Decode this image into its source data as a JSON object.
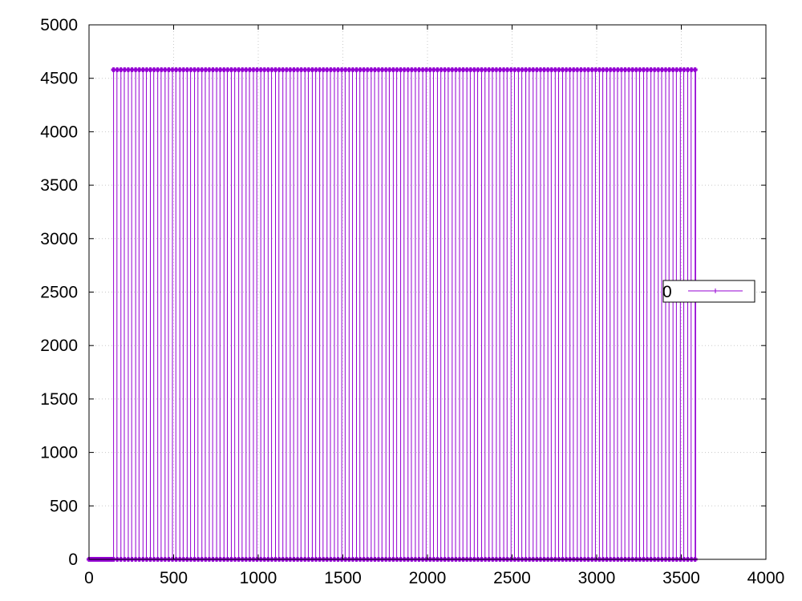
{
  "chart_data": {
    "type": "line",
    "title": "",
    "xlabel": "",
    "ylabel": "",
    "xlim": [
      0,
      4000
    ],
    "ylim": [
      0,
      5000
    ],
    "xticks": [
      0,
      500,
      1000,
      1500,
      2000,
      2500,
      3000,
      3500,
      4000
    ],
    "yticks": [
      0,
      500,
      1000,
      1500,
      2000,
      2500,
      3000,
      3500,
      4000,
      4500,
      5000
    ],
    "grid": true,
    "legend_position": "right",
    "series": [
      {
        "name": "0",
        "color": "#9400d3",
        "pattern": {
          "description_free": true,
          "low_value": 0,
          "high_value": 4580,
          "initial_low_range": [
            0,
            145
          ],
          "pulse_start": 145,
          "pulse_period": 43.5,
          "pulse_width": 20,
          "pulse_count": 80,
          "end_x": 3585
        }
      }
    ]
  }
}
